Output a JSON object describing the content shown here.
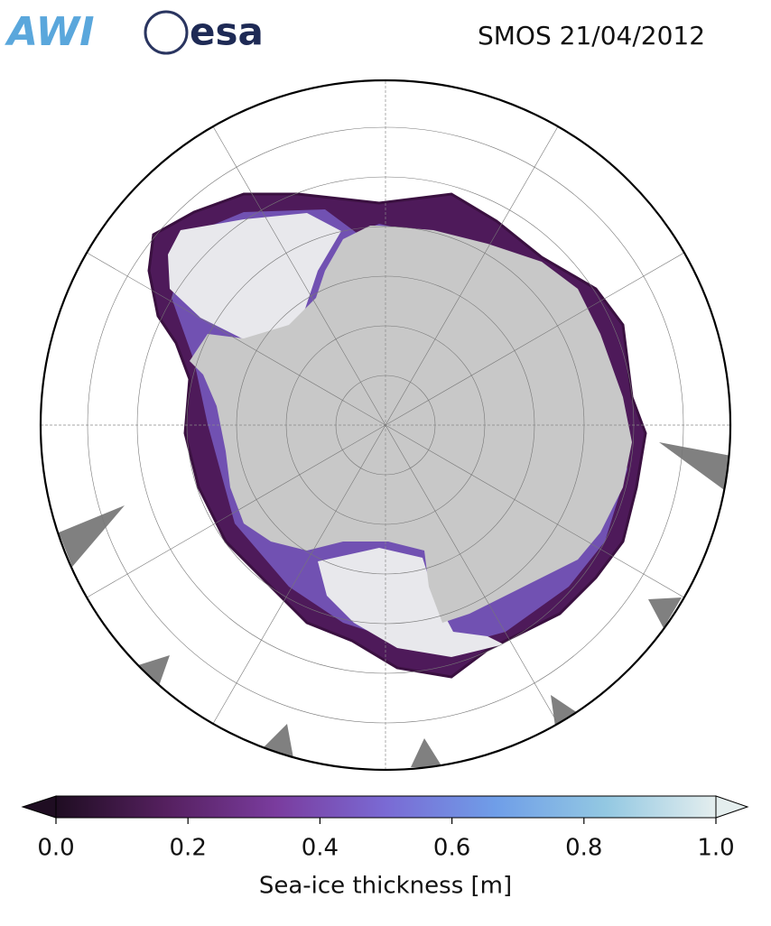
{
  "header": {
    "logos": [
      "AWI",
      "esa"
    ],
    "title": "SMOS 21/04/2012"
  },
  "colorbar": {
    "label": "Sea-ice thickness [m]",
    "lim": [
      0,
      1
    ],
    "ticks": [
      {
        "value": 0,
        "label": "0.0"
      },
      0.2,
      0.4,
      0.6,
      0.8,
      {
        "value": 1,
        "label": "1.0"
      }
    ],
    "colors": [
      "#1f0d22",
      "#55205f",
      "#7a3c9e",
      "#7a6ad4",
      "#6f9ee8",
      "#93c8e2",
      "#e4eeee"
    ]
  }
}
